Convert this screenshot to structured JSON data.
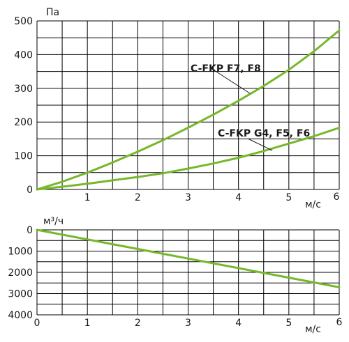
{
  "chart_data": [
    {
      "type": "line",
      "title": "",
      "ylabel": "Па",
      "xlabel": "м/с",
      "xlim": [
        0,
        6
      ],
      "ylim": [
        0,
        500
      ],
      "x_ticks": [
        "1",
        "2",
        "3",
        "4",
        "5",
        "6"
      ],
      "y_ticks": [
        "0",
        "100",
        "200",
        "300",
        "400",
        "500"
      ],
      "grid": true,
      "series": [
        {
          "name": "C-FKP F7, F8",
          "color": "#76b82a",
          "x": [
            0,
            0.5,
            1,
            1.5,
            2,
            2.5,
            3,
            3.5,
            4,
            4.5,
            5,
            5.5,
            6
          ],
          "y": [
            0,
            23,
            50,
            80,
            112,
            146,
            183,
            222,
            263,
            307,
            355,
            410,
            472
          ]
        },
        {
          "name": "C-FKP G4, F5, F6",
          "color": "#76b82a",
          "x": [
            0,
            0.5,
            1,
            1.5,
            2,
            2.5,
            3,
            3.5,
            4,
            4.5,
            5,
            5.5,
            6
          ],
          "y": [
            0,
            8,
            17,
            27,
            37,
            48,
            62,
            77,
            94,
            114,
            136,
            158,
            183
          ]
        }
      ],
      "annotations": [
        {
          "text": "C-FKP F7, F8",
          "series": 0
        },
        {
          "text": "C-FKP G4, F5, F6",
          "series": 1
        }
      ]
    },
    {
      "type": "line",
      "title": "",
      "ylabel": "м³/ч",
      "xlabel": "м/с",
      "xlim": [
        0,
        6
      ],
      "ylim": [
        0,
        4000
      ],
      "y_inverted": true,
      "x_ticks": [
        "0",
        "1",
        "2",
        "3",
        "4",
        "5",
        "6"
      ],
      "y_ticks": [
        "0",
        "1000",
        "2000",
        "3000",
        "4000"
      ],
      "grid": true,
      "series": [
        {
          "color": "#76b82a",
          "x": [
            0,
            6
          ],
          "y": [
            0,
            2700
          ]
        }
      ]
    }
  ]
}
